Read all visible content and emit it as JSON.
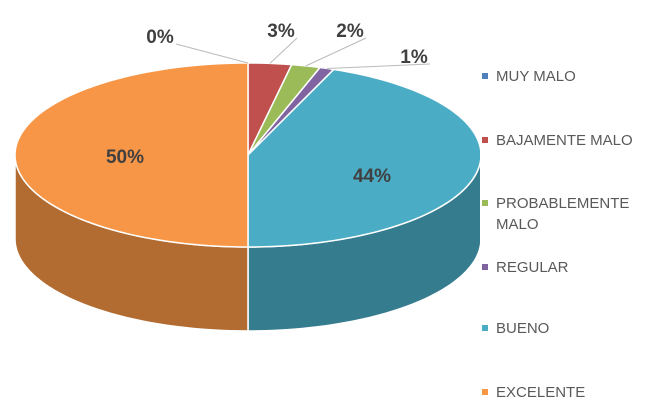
{
  "chart_data": {
    "type": "pie3d",
    "categories": [
      "MUY MALO",
      "BAJAMENTE MALO",
      "PROBABLEMENTE MALO",
      "REGULAR",
      "BUENO",
      "EXCELENTE"
    ],
    "values": [
      0,
      3,
      2,
      1,
      44,
      50
    ],
    "value_labels": [
      "0%",
      "3%",
      "2%",
      "1%",
      "44%",
      "50%"
    ],
    "colors": [
      "#4f81bd",
      "#c0504d",
      "#9bbb59",
      "#8064a2",
      "#4bacc6",
      "#f79646"
    ],
    "legend": "right"
  }
}
